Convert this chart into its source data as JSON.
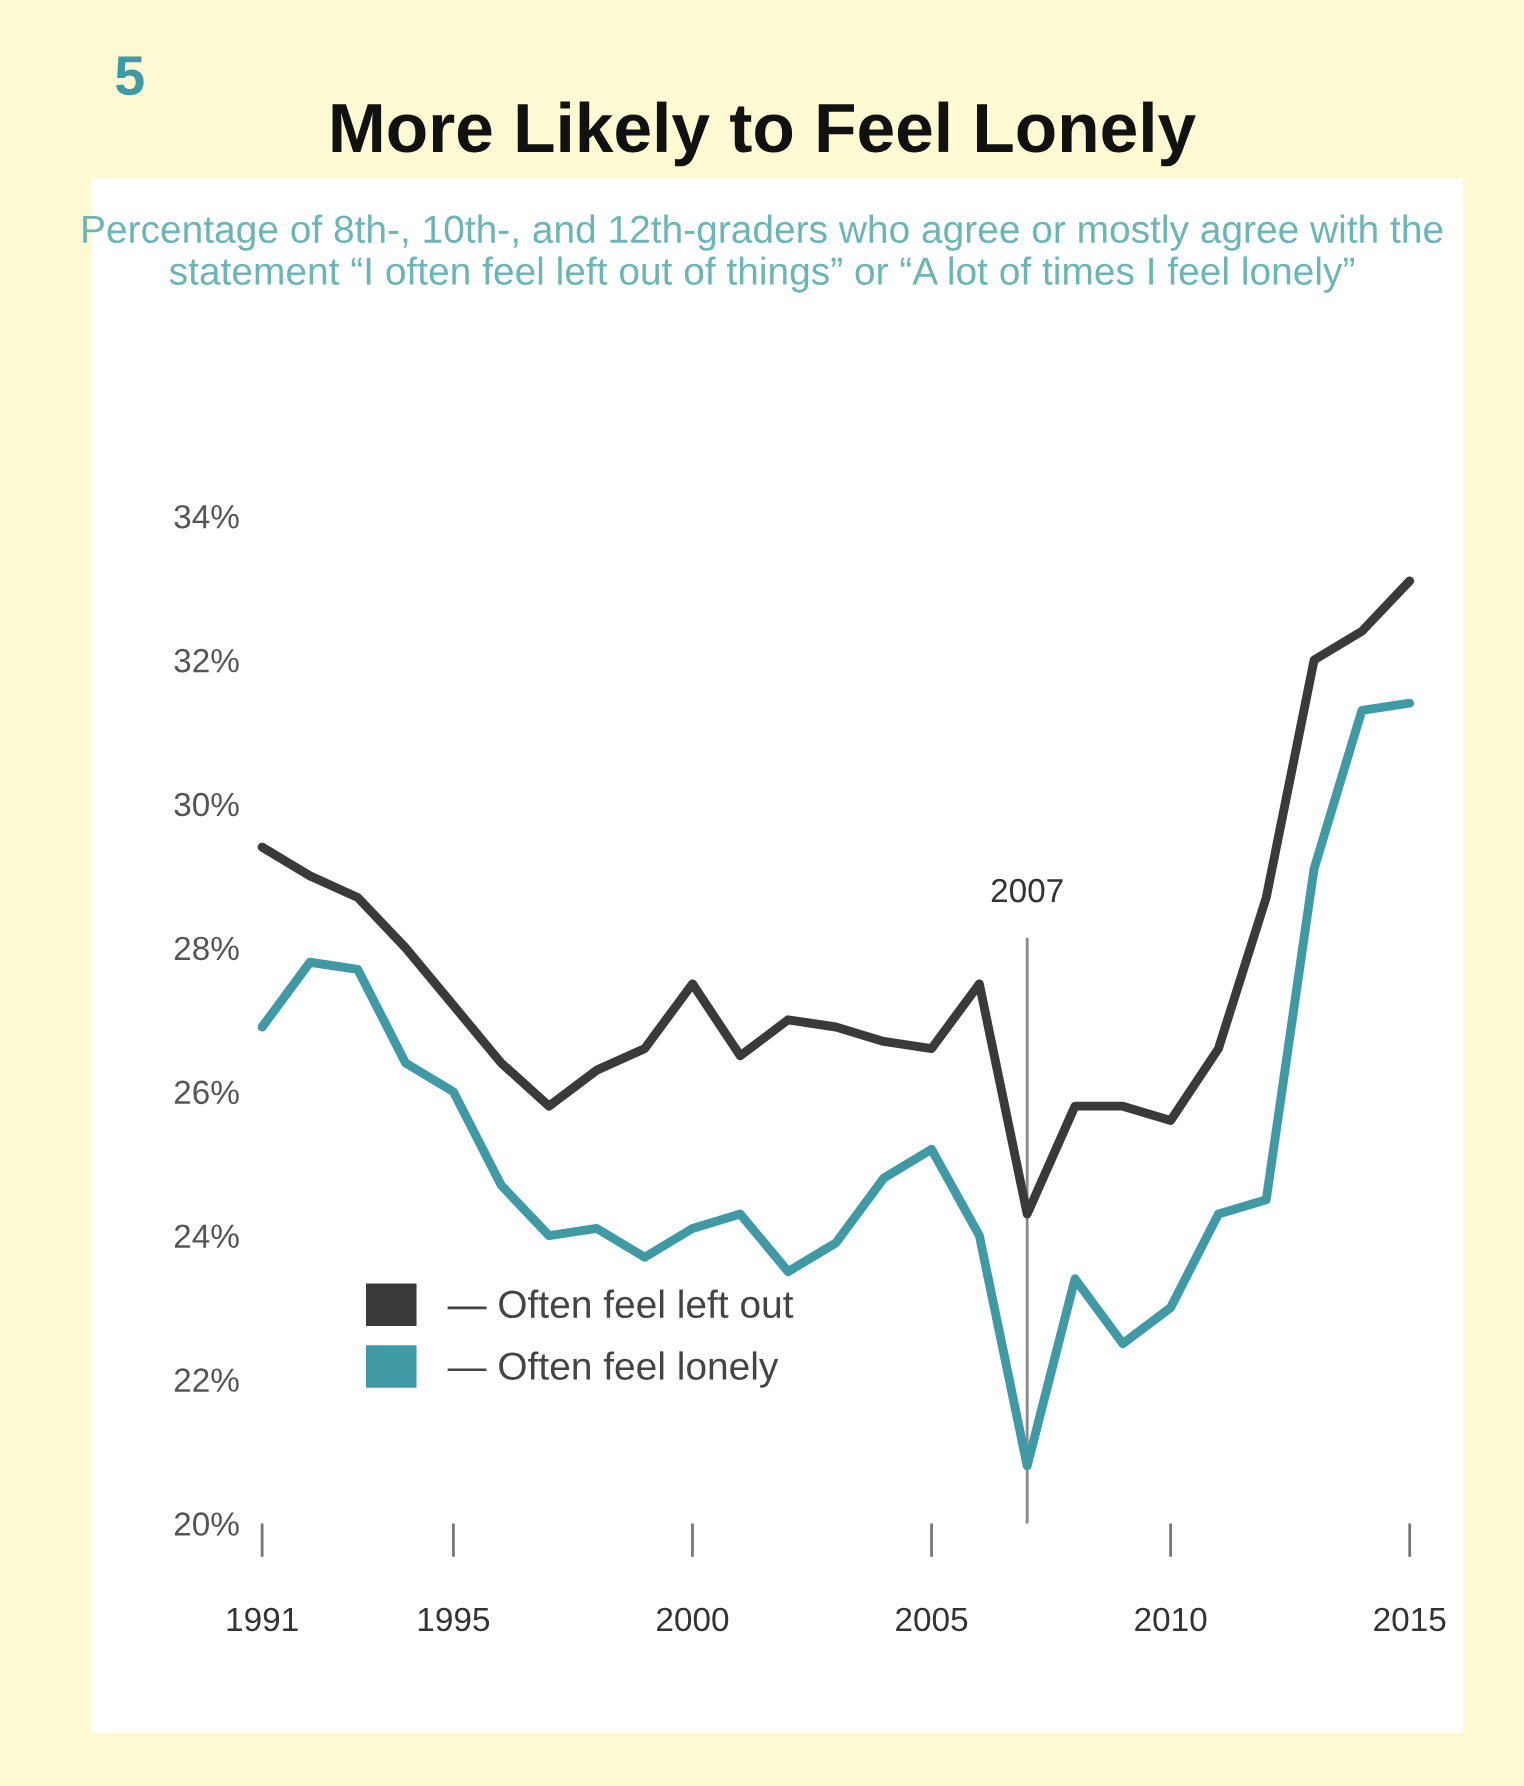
{
  "chart_data": {
    "type": "line",
    "title": "More Likely to Feel Lonely",
    "subtitle": "Percentage of 8th-, 10th-, and 12th-graders who agree or mostly agree with the statement “I often feel left out of things” or “A lot of times I feel lonely”",
    "annotations": [
      "5"
    ],
    "x": [
      1991,
      1992,
      1993,
      1994,
      1995,
      1996,
      1997,
      1998,
      1999,
      2000,
      2001,
      2002,
      2003,
      2004,
      2005,
      2006,
      2007,
      2008,
      2009,
      2010,
      2011,
      2012,
      2013,
      2014,
      2015
    ],
    "series": [
      {
        "name": "— Often feel left out",
        "color": "#3a3a3a",
        "values": [
          29.4,
          29.0,
          28.7,
          28.0,
          27.2,
          26.4,
          25.8,
          26.3,
          26.6,
          27.5,
          26.5,
          27.0,
          26.9,
          26.7,
          26.6,
          27.5,
          24.3,
          25.8,
          25.8,
          25.6,
          26.6,
          28.7,
          32.0,
          32.4,
          33.1
        ]
      },
      {
        "name": "— Often feel lonely",
        "color": "#3f9aa6",
        "values": [
          26.9,
          27.8,
          27.7,
          26.4,
          26.0,
          24.7,
          24.0,
          24.1,
          23.7,
          24.1,
          24.3,
          23.5,
          23.9,
          24.8,
          25.2,
          24.0,
          20.8,
          23.4,
          22.5,
          23.0,
          24.3,
          24.5,
          29.1,
          31.3,
          31.4
        ]
      }
    ],
    "xlim": [
      1991,
      2015
    ],
    "xticks": [
      1991,
      1995,
      2000,
      2005,
      2010,
      2015
    ],
    "ylim": [
      20,
      34
    ],
    "yticks": [
      {
        "value": 20,
        "label": "20%"
      },
      {
        "value": 22,
        "label": "22%"
      },
      {
        "value": 24,
        "label": "24%"
      },
      {
        "value": 26,
        "label": "26%"
      },
      {
        "value": 28,
        "label": "28%"
      },
      {
        "value": 30,
        "label": "30%"
      },
      {
        "value": 32,
        "label": "32%"
      },
      {
        "value": 34,
        "label": "34%"
      }
    ],
    "ref_lines": [
      {
        "axis": "x",
        "value": 2007,
        "label": "2007",
        "color": "#888888"
      }
    ],
    "legend": "bottom left",
    "grid": false,
    "marker": "none",
    "line_style": "solid"
  }
}
